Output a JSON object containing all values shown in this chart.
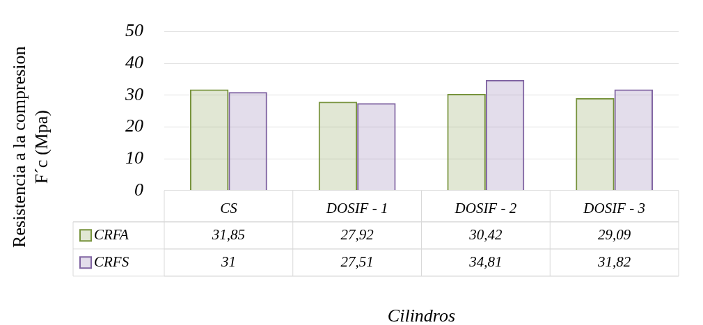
{
  "chart_data": {
    "type": "bar",
    "ylabel": "Resistencia a la compresion\nF´c (Mpa)",
    "xlabel": "Cilindros",
    "categories": [
      "CS",
      "DOSIF - 1",
      "DOSIF - 2",
      "DOSIF - 3"
    ],
    "series": [
      {
        "name": "CRFA",
        "color": "#77933c",
        "values": [
          31.85,
          27.92,
          30.42,
          29.09
        ],
        "value_labels": [
          "31,85",
          "27,92",
          "30,42",
          "29,09"
        ]
      },
      {
        "name": "CRFS",
        "color": "#8064a2",
        "values": [
          31,
          27.51,
          34.81,
          31.82
        ],
        "value_labels": [
          "31",
          "27,51",
          "34,81",
          "31,82"
        ]
      }
    ],
    "ylim": [
      0,
      50
    ],
    "yticks": [
      0,
      10,
      20,
      30,
      40,
      50
    ],
    "grid": "y",
    "legend": "bottom left"
  }
}
